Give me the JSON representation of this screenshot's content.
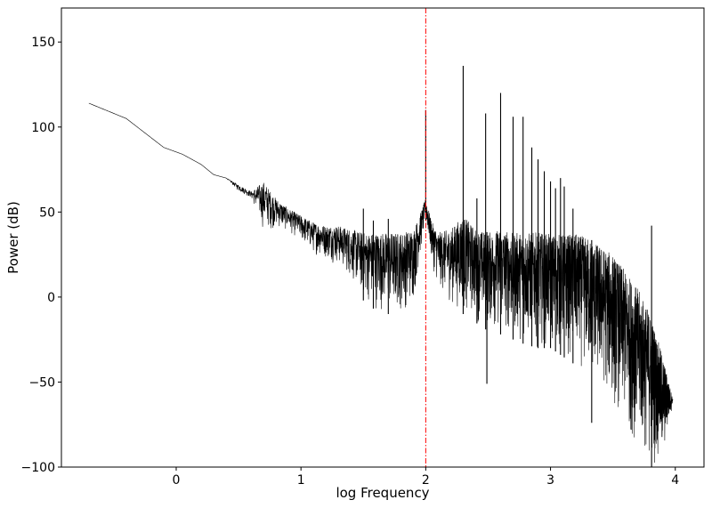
{
  "chart_data": {
    "type": "line",
    "title": "",
    "xlabel": "log Frequency",
    "ylabel": "Power (dB)",
    "xlim": [
      -0.92,
      4.23
    ],
    "ylim": [
      -100,
      170
    ],
    "xticks": [
      0,
      1,
      2,
      3,
      4
    ],
    "yticks": [
      -100,
      -50,
      0,
      50,
      100,
      150
    ],
    "grid": false,
    "line_color": "#000000",
    "vline": {
      "x": 2.0,
      "color": "#ff0000",
      "style": "dash-dot"
    },
    "series": [
      {
        "envelope": {
          "x": [
            -0.7,
            -0.4,
            -0.1,
            0.05,
            0.2,
            0.3,
            0.4,
            0.5,
            0.6,
            0.7,
            0.8,
            0.9,
            1.0,
            1.1,
            1.2,
            1.3,
            1.4,
            1.5,
            1.6,
            1.7,
            1.8,
            1.9,
            1.95,
            2.0,
            2.05,
            2.1,
            2.2,
            2.3,
            2.4,
            2.5,
            2.6,
            2.7,
            2.8,
            2.9,
            3.0,
            3.1,
            3.2,
            3.3,
            3.4,
            3.5,
            3.6,
            3.7,
            3.8,
            3.9,
            3.98
          ],
          "upper": [
            114,
            105,
            88,
            84,
            78,
            72,
            70,
            66,
            62,
            68,
            58,
            52,
            48,
            44,
            42,
            42,
            40,
            38,
            38,
            38,
            38,
            40,
            48,
            58,
            44,
            38,
            40,
            48,
            40,
            38,
            40,
            38,
            38,
            38,
            37,
            37,
            37,
            35,
            30,
            25,
            15,
            5,
            -10,
            -35,
            -60
          ],
          "lower": [
            114,
            105,
            88,
            84,
            78,
            72,
            70,
            62,
            58,
            38,
            40,
            38,
            32,
            25,
            22,
            18,
            10,
            -2,
            -8,
            -10,
            -10,
            -5,
            20,
            45,
            18,
            5,
            -5,
            -10,
            -15,
            -20,
            -22,
            -25,
            -28,
            -30,
            -30,
            -35,
            -40,
            -48,
            -55,
            -65,
            -78,
            -90,
            -100,
            -100,
            -62
          ]
        },
        "peaks": [
          {
            "x": 1.5,
            "y": 52
          },
          {
            "x": 1.58,
            "y": 45
          },
          {
            "x": 1.7,
            "y": 46
          },
          {
            "x": 2.0,
            "y": 110
          },
          {
            "x": 2.3,
            "y": 136
          },
          {
            "x": 2.41,
            "y": 58
          },
          {
            "x": 2.48,
            "y": 108
          },
          {
            "x": 2.6,
            "y": 120
          },
          {
            "x": 2.7,
            "y": 106
          },
          {
            "x": 2.78,
            "y": 106
          },
          {
            "x": 2.85,
            "y": 88
          },
          {
            "x": 2.9,
            "y": 81
          },
          {
            "x": 2.95,
            "y": 74
          },
          {
            "x": 3.0,
            "y": 68
          },
          {
            "x": 3.04,
            "y": 64
          },
          {
            "x": 3.08,
            "y": 70
          },
          {
            "x": 3.11,
            "y": 65
          },
          {
            "x": 3.18,
            "y": 52
          },
          {
            "x": 3.81,
            "y": 42
          }
        ],
        "dips": [
          {
            "x": 2.49,
            "y": -51
          },
          {
            "x": 3.33,
            "y": -74
          }
        ]
      }
    ]
  }
}
